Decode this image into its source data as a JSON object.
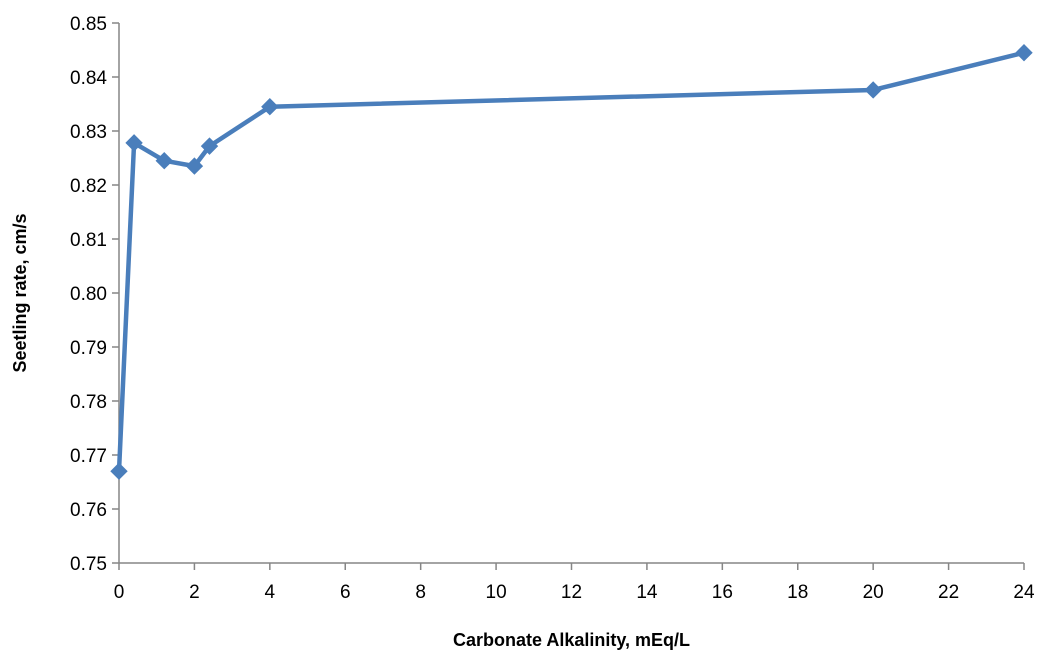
{
  "chart_data": {
    "type": "line",
    "title": "",
    "xlabel": "Carbonate Alkalinity, mEq/L",
    "ylabel": "Seetling rate, cm/s",
    "xlim": [
      0,
      24
    ],
    "ylim": [
      0.75,
      0.85
    ],
    "x_ticks": [
      0,
      2,
      4,
      6,
      8,
      10,
      12,
      14,
      16,
      18,
      20,
      22,
      24
    ],
    "y_ticks": [
      0.75,
      0.76,
      0.77,
      0.78,
      0.79,
      0.8,
      0.81,
      0.82,
      0.83,
      0.84,
      0.85
    ],
    "x_tick_labels": [
      "0",
      "2",
      "4",
      "6",
      "8",
      "10",
      "12",
      "14",
      "16",
      "18",
      "20",
      "22",
      "24"
    ],
    "y_tick_labels": [
      "0.75",
      "0.76",
      "0.77",
      "0.78",
      "0.79",
      "0.80",
      "0.81",
      "0.82",
      "0.83",
      "0.84",
      "0.85"
    ],
    "grid": false,
    "legend": "none",
    "marker": "diamond",
    "series": [
      {
        "color": "#4a7ebb",
        "x": [
          0,
          0.4,
          1.2,
          2.0,
          2.4,
          4,
          20,
          24
        ],
        "y": [
          0.767,
          0.8278,
          0.8245,
          0.8235,
          0.8272,
          0.8345,
          0.8376,
          0.8445
        ]
      }
    ]
  }
}
